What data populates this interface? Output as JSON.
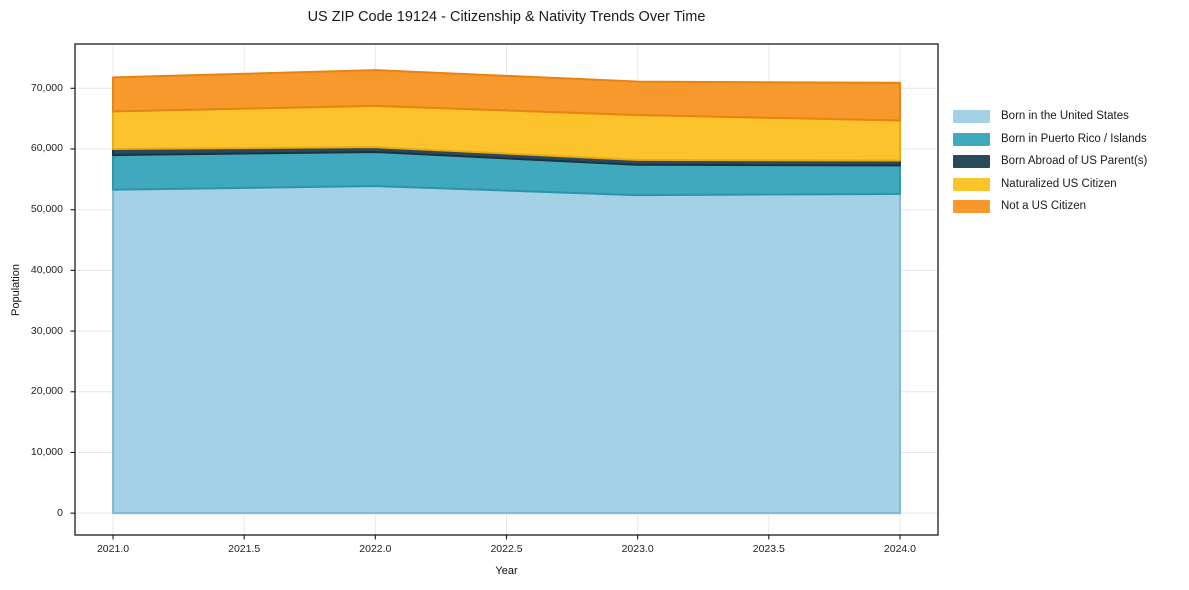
{
  "figure": {
    "title": "US ZIP Code 19124 - Citizenship & Nativity Trends Over Time",
    "background_color": "#ffffff"
  },
  "chart_data": {
    "type": "area",
    "stacked": true,
    "title": "US ZIP Code 19124 - Citizenship & Nativity Trends Over Time",
    "xlabel": "Year",
    "ylabel": "Population",
    "x": [
      2021,
      2022,
      2023,
      2024
    ],
    "series": [
      {
        "name": "Born in the United States",
        "color": "#a4d1e6",
        "edge_color": "#7fb9d5",
        "values": [
          53300,
          53900,
          52400,
          52600
        ]
      },
      {
        "name": "Born in Puerto Rico / Islands",
        "color": "#41a9bd",
        "edge_color": "#2f93a8",
        "values": [
          5700,
          5600,
          5000,
          4700
        ]
      },
      {
        "name": "Born Abroad of US Parent(s)",
        "color": "#2a4a5c",
        "edge_color": "#1c3240",
        "values": [
          1000,
          800,
          800,
          800
        ]
      },
      {
        "name": "Naturalized US Citizen",
        "color": "#fdc32d",
        "edge_color": "#eaaa12",
        "values": [
          6200,
          6800,
          7400,
          6600
        ]
      },
      {
        "name": "Not a US Citizen",
        "color": "#f8992e",
        "edge_color": "#e8830f",
        "values": [
          5600,
          5900,
          5500,
          6200
        ]
      }
    ],
    "stacked_totals": [
      71800,
      73000,
      71100,
      70900
    ],
    "xtick_values": [
      2021.0,
      2021.5,
      2022.0,
      2022.5,
      2023.0,
      2023.5,
      2024.0
    ],
    "xtick_labels": [
      "2021.0",
      "2021.5",
      "2022.0",
      "2022.5",
      "2023.0",
      "2023.5",
      "2024.0"
    ],
    "ytick_values": [
      0,
      10000,
      20000,
      30000,
      40000,
      50000,
      60000,
      70000
    ],
    "ytick_labels": [
      "0",
      "10,000",
      "20,000",
      "30,000",
      "40,000",
      "50,000",
      "60,000",
      "70,000"
    ],
    "xlim": [
      2020.855,
      2024.145
    ],
    "ylim": [
      -3600,
      77300
    ],
    "grid": true,
    "grid_color": "#e8e8e8",
    "legend_position": "right-outside",
    "axis_color": "#1a1a1a"
  }
}
